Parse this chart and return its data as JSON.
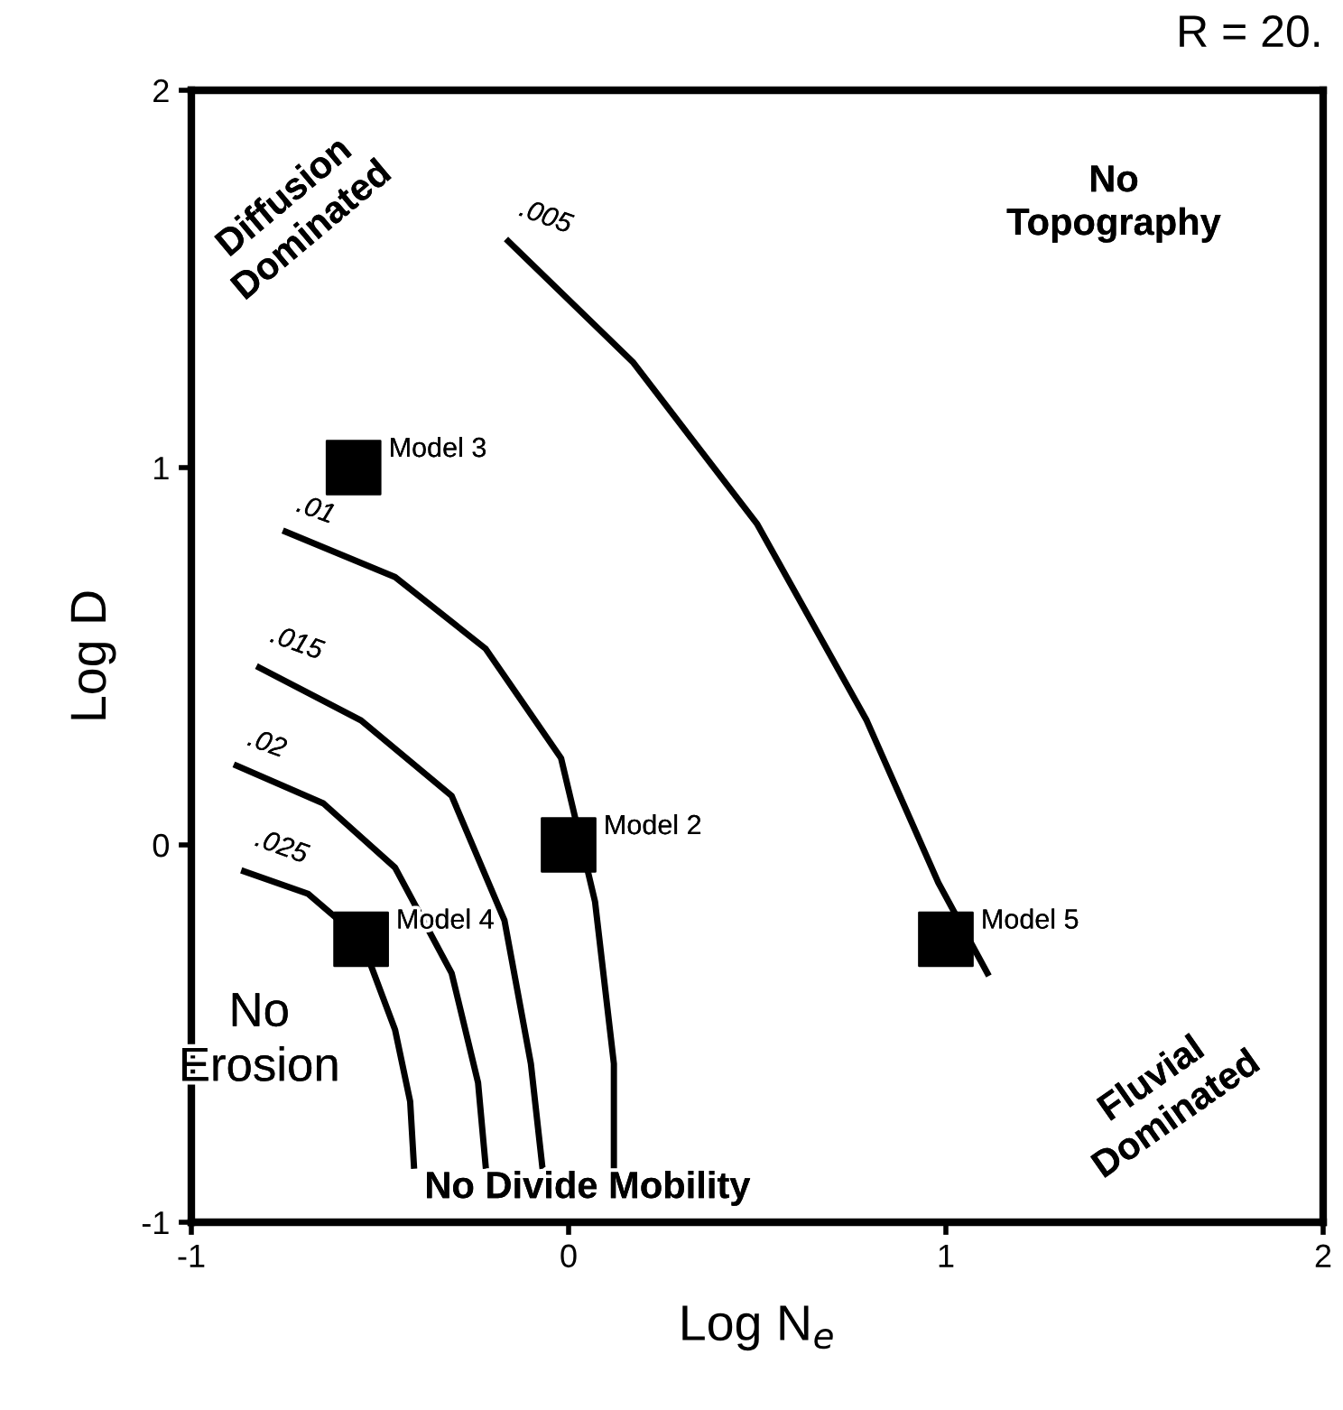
{
  "chart_data": {
    "type": "line",
    "title": "R = 20.",
    "xlabel": "Log N$_{e}$",
    "ylabel": "Log D",
    "xlim": [
      -1,
      2
    ],
    "ylim": [
      -1,
      2
    ],
    "xticks": [
      -1,
      0,
      1,
      2
    ],
    "yticks": [
      -1,
      0,
      1,
      2
    ],
    "grid": false,
    "legend": false,
    "line_style": "solid",
    "marker": "none",
    "series": [
      {
        "name": ".005",
        "color": "#000000",
        "x": [
          -0.16,
          0.17,
          0.5,
          0.79,
          0.98,
          1.11
        ],
        "values": [
          1.6,
          1.28,
          0.85,
          0.33,
          -0.1,
          -0.34
        ]
      },
      {
        "name": ".01",
        "color": "#000000",
        "x": [
          -0.75,
          -0.46,
          -0.22,
          -0.02,
          0.07,
          0.12,
          0.12
        ],
        "values": [
          0.83,
          0.71,
          0.52,
          0.23,
          -0.15,
          -0.58,
          -0.85
        ]
      },
      {
        "name": ".015",
        "color": "#000000",
        "x": [
          -0.82,
          -0.55,
          -0.31,
          -0.17,
          -0.1,
          -0.07
        ],
        "values": [
          0.47,
          0.33,
          0.13,
          -0.2,
          -0.58,
          -0.85
        ]
      },
      {
        "name": ".02",
        "color": "#000000",
        "x": [
          -0.88,
          -0.65,
          -0.46,
          -0.31,
          -0.24,
          -0.22
        ],
        "values": [
          0.21,
          0.11,
          -0.06,
          -0.34,
          -0.63,
          -0.85
        ]
      },
      {
        "name": ".025",
        "color": "#000000",
        "x": [
          -0.86,
          -0.69,
          -0.55,
          -0.46,
          -0.42,
          -0.41
        ],
        "values": [
          -0.07,
          -0.13,
          -0.25,
          -0.49,
          -0.68,
          -0.85
        ]
      },
      {
        "type": "scatter",
        "color": "#000000",
        "marker": "square",
        "x": [
          -0.57,
          0,
          -0.55,
          1.0
        ],
        "values": [
          1.0,
          0,
          -0.25,
          -0.25
        ]
      }
    ],
    "annotations": [
      {
        "text": "Model 3",
        "x": -0.57,
        "y": 1.0
      },
      {
        "text": "Model 2",
        "x": 0,
        "y": 0
      },
      {
        "text": "Model 4",
        "x": -0.55,
        "y": -0.25
      },
      {
        "text": "Model 5",
        "x": 1.0,
        "y": -0.25
      },
      "Diffusion\nDominated",
      "No\nTopography",
      "No\nErosion",
      "No Divide Mobility",
      "Fluvial\nDominated"
    ]
  }
}
